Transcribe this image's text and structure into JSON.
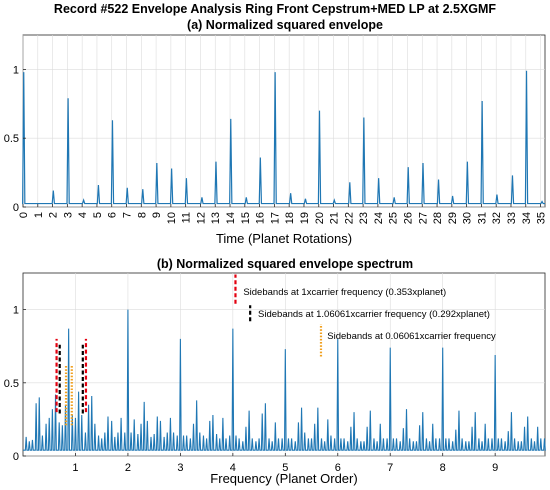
{
  "figure": {
    "title": "Record  #522 Envelope Analysis   Ring Front Cepstrum+MED LP at 2.5XGMF"
  },
  "colors": {
    "signal": "#1f77b4",
    "red_dash": "#e3000f",
    "black_dash": "#000000",
    "orange_dot": "#f0a020",
    "grid": "#dcdcdc"
  },
  "chart_data": [
    {
      "type": "line",
      "title": "(a) Normalized squared envelope",
      "xlabel": "Time (Planet Rotations)",
      "ylabel": "",
      "xlim": [
        0,
        35.3
      ],
      "ylim": [
        0,
        1.25
      ],
      "xticks": [
        0,
        1,
        2,
        3,
        4,
        5,
        6,
        7,
        8,
        9,
        10,
        11,
        12,
        13,
        14,
        15,
        16,
        17,
        18,
        19,
        20,
        21,
        22,
        23,
        24,
        25,
        26,
        27,
        28,
        29,
        30,
        31,
        32,
        33,
        34,
        35
      ],
      "xtick_labels": [
        "0",
        "1",
        "2",
        "3",
        "4",
        "5",
        "6",
        "7",
        "8",
        "9",
        "10",
        "11",
        "12",
        "13",
        "14",
        "15",
        "16",
        "17",
        "18",
        "19",
        "20",
        "21",
        "22",
        "23",
        "24",
        "25",
        "26",
        "27",
        "28",
        "29",
        "30",
        "31",
        "32",
        "33",
        "34",
        "35"
      ],
      "yticks": [
        0,
        0.5,
        1
      ],
      "ytick_labels": [
        "0",
        "0.5",
        "1"
      ],
      "grid": true,
      "baseline": 0.025,
      "peaks": {
        "x": [
          0.05,
          2.05,
          3.05,
          4.1,
          5.1,
          6.05,
          7.05,
          8.1,
          9.05,
          10.05,
          11.05,
          12.1,
          13.05,
          14.05,
          15.1,
          16.05,
          17.05,
          18.1,
          19.1,
          20.05,
          21.05,
          22.1,
          23.05,
          24.05,
          25.1,
          26.05,
          27.05,
          28.1,
          29.05,
          30.05,
          31.05,
          32.05,
          33.1,
          34.05,
          35.1
        ],
        "y": [
          0.98,
          0.12,
          0.79,
          0.05,
          0.16,
          0.63,
          0.14,
          0.13,
          0.32,
          0.28,
          0.21,
          0.07,
          0.33,
          0.64,
          0.07,
          0.36,
          0.98,
          0.1,
          0.06,
          0.7,
          0.05,
          0.18,
          0.65,
          0.21,
          0.07,
          0.29,
          0.32,
          0.2,
          0.08,
          0.33,
          0.77,
          0.09,
          0.23,
          0.99,
          0.04
        ]
      }
    },
    {
      "type": "line",
      "title": "(b) Normalized squared envelope spectrum",
      "xlabel": "Frequency (Planet Order)",
      "ylabel": "",
      "xlim": [
        0,
        9.95
      ],
      "ylim": [
        0,
        1.25
      ],
      "xticks": [
        1,
        2,
        3,
        4,
        5,
        6,
        7,
        8,
        9
      ],
      "xtick_labels": [
        "1",
        "2",
        "3",
        "4",
        "5",
        "6",
        "7",
        "8",
        "9"
      ],
      "yticks": [
        0,
        0.5,
        1
      ],
      "ytick_labels": [
        "0",
        "0.5",
        "1"
      ],
      "grid": true,
      "baseline": 0.04,
      "peaks": {
        "x": [
          0.06,
          0.12,
          0.18,
          0.25,
          0.31,
          0.37,
          0.44,
          0.5,
          0.56,
          0.62,
          0.69,
          0.75,
          0.81,
          0.87,
          0.94,
          1.0,
          1.06,
          1.12,
          1.19,
          1.25,
          1.31,
          1.37,
          1.44,
          1.5,
          1.56,
          1.62,
          1.69,
          1.75,
          1.81,
          1.87,
          1.94,
          2.0,
          2.06,
          2.12,
          2.19,
          2.25,
          2.31,
          2.37,
          2.44,
          2.5,
          2.56,
          2.62,
          2.69,
          2.75,
          2.81,
          2.87,
          2.94,
          3.0,
          3.06,
          3.12,
          3.19,
          3.25,
          3.31,
          3.37,
          3.44,
          3.5,
          3.56,
          3.62,
          3.69,
          3.75,
          3.81,
          3.87,
          3.94,
          4.0,
          4.06,
          4.12,
          4.19,
          4.25,
          4.31,
          4.37,
          4.44,
          4.5,
          4.56,
          4.62,
          4.69,
          4.75,
          4.81,
          4.87,
          4.94,
          5.0,
          5.06,
          5.12,
          5.19,
          5.25,
          5.31,
          5.37,
          5.44,
          5.5,
          5.56,
          5.62,
          5.69,
          5.75,
          5.81,
          5.87,
          5.94,
          6.0,
          6.06,
          6.12,
          6.19,
          6.25,
          6.31,
          6.37,
          6.44,
          6.5,
          6.56,
          6.62,
          6.69,
          6.75,
          6.81,
          6.87,
          6.94,
          7.0,
          7.06,
          7.12,
          7.19,
          7.25,
          7.31,
          7.37,
          7.44,
          7.5,
          7.56,
          7.62,
          7.69,
          7.75,
          7.81,
          7.87,
          7.94,
          8.0,
          8.06,
          8.12,
          8.19,
          8.25,
          8.31,
          8.37,
          8.44,
          8.5,
          8.56,
          8.62,
          8.69,
          8.75,
          8.81,
          8.87,
          8.94,
          9.0,
          9.06,
          9.12,
          9.19,
          9.25,
          9.31,
          9.37,
          9.44,
          9.5,
          9.56,
          9.62,
          9.69,
          9.75,
          9.81,
          9.87,
          9.94
        ],
        "y": [
          0.13,
          0.1,
          0.11,
          0.36,
          0.4,
          0.14,
          0.22,
          0.26,
          0.32,
          0.42,
          0.23,
          0.21,
          0.35,
          0.87,
          0.28,
          0.26,
          0.44,
          0.28,
          0.16,
          0.35,
          0.41,
          0.22,
          0.14,
          0.12,
          0.16,
          0.27,
          0.24,
          0.13,
          0.16,
          0.26,
          0.16,
          1.0,
          0.16,
          0.25,
          0.15,
          0.22,
          0.37,
          0.24,
          0.13,
          0.15,
          0.27,
          0.24,
          0.13,
          0.16,
          0.26,
          0.16,
          0.14,
          0.8,
          0.14,
          0.14,
          0.12,
          0.22,
          0.38,
          0.16,
          0.14,
          0.12,
          0.24,
          0.28,
          0.15,
          0.12,
          0.26,
          0.12,
          0.14,
          0.87,
          0.14,
          0.12,
          0.1,
          0.2,
          0.31,
          0.12,
          0.1,
          0.12,
          0.29,
          0.36,
          0.12,
          0.1,
          0.23,
          0.12,
          0.12,
          0.73,
          0.12,
          0.12,
          0.1,
          0.23,
          0.33,
          0.16,
          0.12,
          0.12,
          0.22,
          0.33,
          0.12,
          0.1,
          0.25,
          0.14,
          0.12,
          0.8,
          0.12,
          0.12,
          0.1,
          0.2,
          0.3,
          0.12,
          0.1,
          0.1,
          0.2,
          0.31,
          0.12,
          0.1,
          0.22,
          0.12,
          0.12,
          0.74,
          0.12,
          0.12,
          0.1,
          0.19,
          0.32,
          0.12,
          0.1,
          0.1,
          0.21,
          0.3,
          0.12,
          0.1,
          0.22,
          0.12,
          0.12,
          0.74,
          0.12,
          0.12,
          0.1,
          0.18,
          0.31,
          0.12,
          0.1,
          0.1,
          0.2,
          0.3,
          0.12,
          0.1,
          0.22,
          0.12,
          0.12,
          0.69,
          0.12,
          0.12,
          0.1,
          0.17,
          0.3,
          0.12,
          0.1,
          0.1,
          0.2,
          0.27,
          0.12,
          0.1,
          0.2,
          0.12,
          0.12
        ]
      },
      "annotations": [
        {
          "text": "Sidebands at 1xcarrier frequency (0.353xplanet)",
          "style": "red_dash",
          "marker_x": 4.05,
          "y_from": 1.04,
          "y_to": 1.24,
          "label_x": 4.2,
          "label_y": 1.12
        },
        {
          "text": "Sidebands at 1.06061xcarrier frequency (0.292xplanet)",
          "style": "black_dash",
          "marker_x": 4.33,
          "y_from": 0.92,
          "y_to": 1.03,
          "label_x": 4.48,
          "label_y": 0.97
        },
        {
          "text": "Sidebands at 0.06061xcarrier frequency",
          "style": "orange_dot",
          "marker_x": 5.68,
          "y_from": 0.68,
          "y_to": 0.9,
          "label_x": 5.8,
          "label_y": 0.82
        }
      ],
      "sideband_markers": [
        {
          "x": 0.64,
          "style": "red_dash",
          "y_from": 0.3,
          "y_to": 0.8
        },
        {
          "x": 0.7,
          "style": "black_dash",
          "y_from": 0.29,
          "y_to": 0.76
        },
        {
          "x": 0.82,
          "style": "orange_dot",
          "y_from": 0.21,
          "y_to": 0.62
        },
        {
          "x": 0.93,
          "style": "orange_dot",
          "y_from": 0.21,
          "y_to": 0.62
        },
        {
          "x": 1.14,
          "style": "black_dash",
          "y_from": 0.29,
          "y_to": 0.76
        },
        {
          "x": 1.2,
          "style": "red_dash",
          "y_from": 0.3,
          "y_to": 0.8
        }
      ]
    }
  ]
}
